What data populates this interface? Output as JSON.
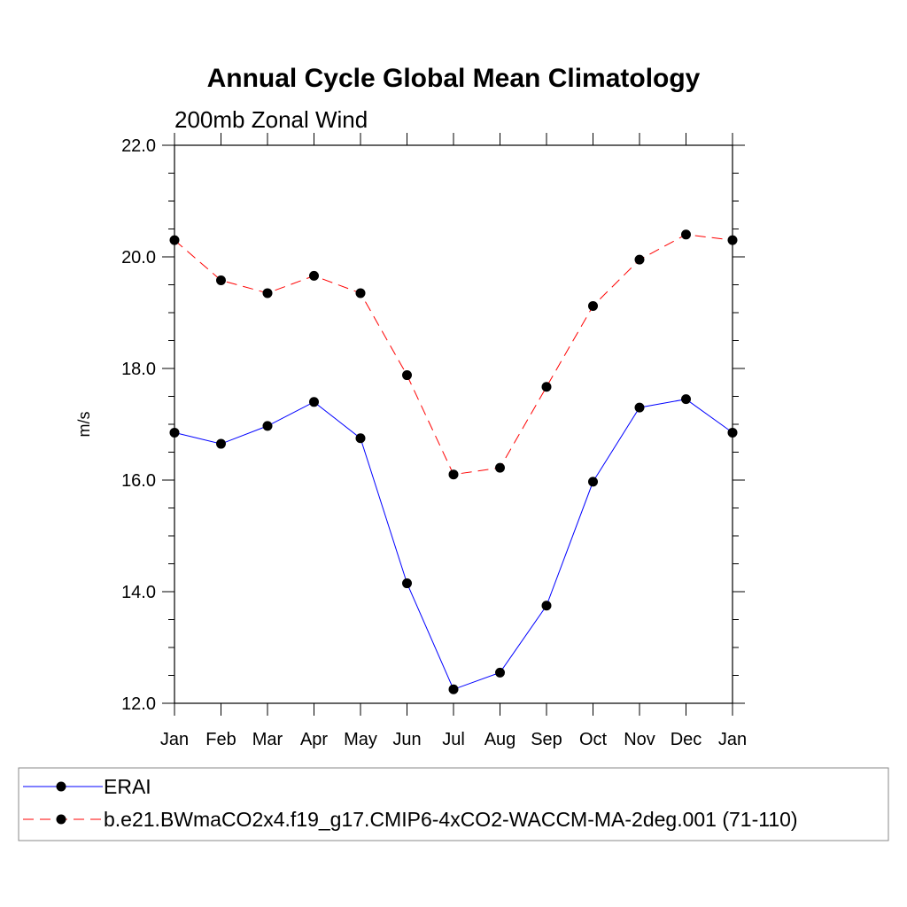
{
  "chart_data": {
    "type": "line",
    "title": "Annual Cycle Global Mean Climatology",
    "subtitle": "200mb Zonal Wind",
    "xlabel": "",
    "ylabel": "m/s",
    "categories": [
      "Jan",
      "Feb",
      "Mar",
      "Apr",
      "May",
      "Jun",
      "Jul",
      "Aug",
      "Sep",
      "Oct",
      "Nov",
      "Dec",
      "Jan"
    ],
    "ylim": [
      12.0,
      22.0
    ],
    "yticks": [
      "12.0",
      "14.0",
      "16.0",
      "18.0",
      "20.0",
      "22.0"
    ],
    "grid": false,
    "legend_position": "bottom",
    "series": [
      {
        "name": "ERAI",
        "color": "#0000ff",
        "style": "solid",
        "marker": "circle",
        "values": [
          16.85,
          16.65,
          16.97,
          17.4,
          16.75,
          14.15,
          12.25,
          12.55,
          13.75,
          15.97,
          17.3,
          17.45,
          16.85
        ]
      },
      {
        "name": "b.e21.BWmaCO2x4.f19_g17.CMIP6-4xCO2-WACCM-MA-2deg.001 (71-110)",
        "color": "#ff0000",
        "style": "dashed",
        "marker": "circle",
        "values": [
          20.3,
          19.58,
          19.35,
          19.66,
          19.35,
          17.88,
          16.1,
          16.22,
          17.67,
          19.12,
          19.95,
          20.4,
          20.3
        ]
      }
    ]
  }
}
